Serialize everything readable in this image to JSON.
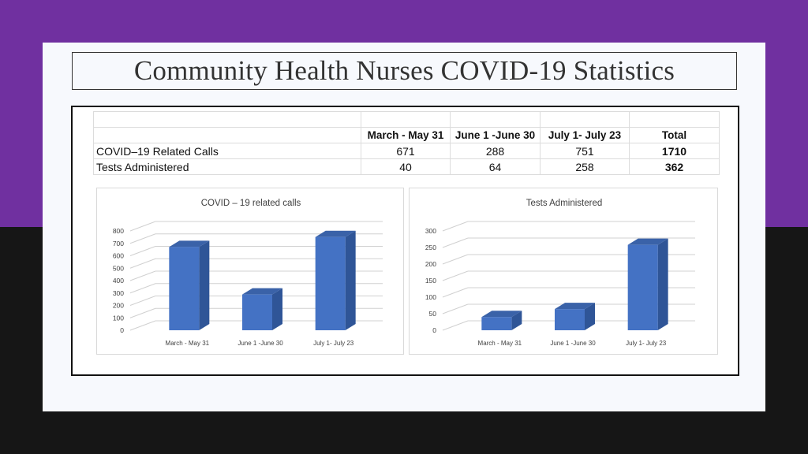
{
  "slide": {
    "title": "Community Health Nurses COVID-19 Statistics"
  },
  "table": {
    "headers": [
      "March - May 31",
      "June 1 -June 30",
      "July 1- July 23",
      "Total"
    ],
    "rows": [
      {
        "label": "COVID–19 Related Calls",
        "values": [
          "671",
          "288",
          "751"
        ],
        "total": "1710"
      },
      {
        "label": "Tests Administered",
        "values": [
          "40",
          "64",
          "258"
        ],
        "total": "362"
      }
    ]
  },
  "colors": {
    "bar_front": "#4472c4",
    "bar_side": "#2f5597",
    "bar_top": "#3a62a8",
    "purple_band": "#7030a0"
  },
  "chart_data": [
    {
      "type": "bar",
      "title": "COVID – 19 related calls",
      "categories": [
        "March - May 31",
        "June 1 -June 30",
        "July 1- July 23"
      ],
      "values": [
        671,
        288,
        751
      ],
      "ylim": [
        0,
        800
      ],
      "yticks": [
        0,
        100,
        200,
        300,
        400,
        500,
        600,
        700,
        800
      ],
      "grid": true
    },
    {
      "type": "bar",
      "title": "Tests Administered",
      "categories": [
        "March - May 31",
        "June 1 -June 30",
        "July 1- July 23"
      ],
      "values": [
        40,
        64,
        258
      ],
      "ylim": [
        0,
        300
      ],
      "yticks": [
        0,
        50,
        100,
        150,
        200,
        250,
        300
      ],
      "grid": true
    }
  ]
}
